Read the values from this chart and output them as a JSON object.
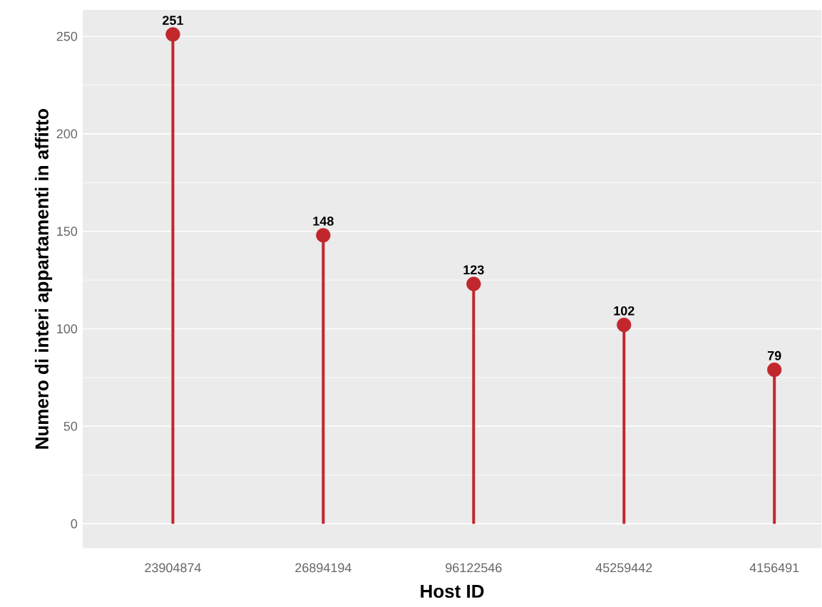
{
  "chart_data": {
    "type": "lollipop",
    "xlabel": "Host ID",
    "ylabel": "Numero di interi appartamenti in affitto",
    "categories": [
      "23904874",
      "26894194",
      "96122546",
      "45259442",
      "4156491"
    ],
    "values": [
      251,
      148,
      123,
      102,
      79
    ],
    "color": "#c1272d",
    "marker": "circle",
    "data_labels": true,
    "grid": "y",
    "ylim": [
      -12.55,
      263.55
    ],
    "yticks": [
      0,
      50,
      100,
      150,
      200,
      250
    ]
  }
}
